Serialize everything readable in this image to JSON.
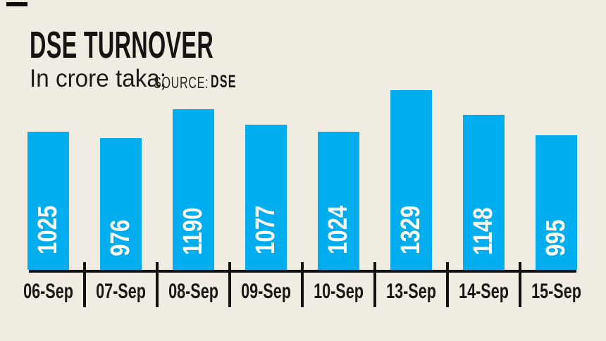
{
  "header": {
    "title": "DSE TURNOVER",
    "subtitle": "In crore taka;",
    "source_label": "SOURCE:",
    "source_value": "DSE"
  },
  "chart_data": {
    "type": "bar",
    "title": "DSE TURNOVER",
    "unit_note": "In crore taka",
    "source": "DSE",
    "categories": [
      "06-Sep",
      "07-Sep",
      "08-Sep",
      "09-Sep",
      "10-Sep",
      "13-Sep",
      "14-Sep",
      "15-Sep"
    ],
    "values": [
      1025,
      976,
      1190,
      1077,
      1024,
      1329,
      1148,
      995
    ],
    "ylim": [
      0,
      1400
    ],
    "grid": false,
    "legend_position": "none",
    "bar_color": "#00ADEE",
    "value_label_color": "#FFFFFF",
    "axis_color": "#111111",
    "background_color": "#F1ECE2",
    "text_color": "#161412"
  }
}
